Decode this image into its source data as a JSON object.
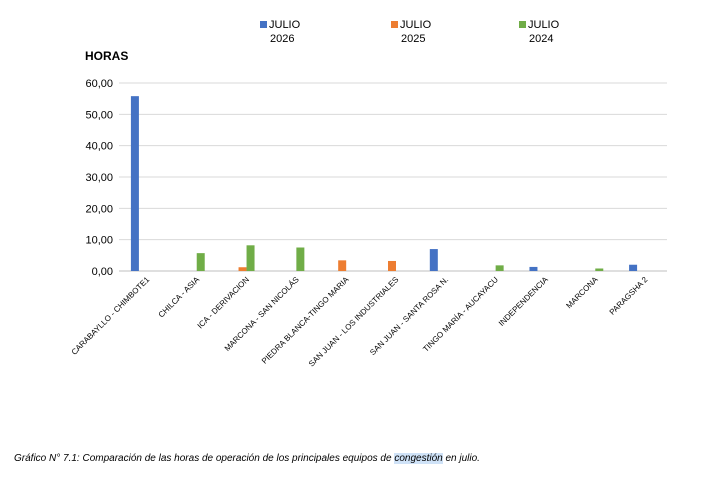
{
  "chart_data": {
    "type": "bar",
    "ylabel": "HORAS",
    "ylim": [
      0,
      60
    ],
    "yticks": [
      "0,00",
      "10,00",
      "20,00",
      "30,00",
      "40,00",
      "50,00",
      "60,00"
    ],
    "grid": true,
    "legend_position": "top",
    "categories": [
      "CARABAYLLO - CHIMBOTE1",
      "CHILCA - ASIA",
      "ICA - DERIVACION",
      "MARCONA - SAN NICOLÁS",
      "PIEDRA BLANCA-TINGO MARIA",
      "SAN JUAN - LOS INDUSTRIALES",
      "SAN JUAN - SANTA ROSA N.",
      "TINGO MARÍA - AUCAYACU",
      "INDEPENDENCIA",
      "MARCONA",
      "PARAGSHA 2"
    ],
    "series": [
      {
        "name": "JULIO 2026",
        "label_line1": "JULIO",
        "label_line2": "2026",
        "color": "#4472C4",
        "values": [
          55.8,
          0,
          0,
          0,
          0,
          0,
          7.0,
          0,
          1.3,
          0,
          2.0
        ]
      },
      {
        "name": "JULIO 2025",
        "label_line1": "JULIO",
        "label_line2": "2025",
        "color": "#ED7D31",
        "values": [
          0,
          0,
          1.2,
          0,
          3.4,
          3.2,
          0,
          0,
          0,
          0,
          0
        ]
      },
      {
        "name": "JULIO 2024",
        "label_line1": "JULIO",
        "label_line2": "2024",
        "color": "#70AD47",
        "values": [
          0,
          5.7,
          8.2,
          7.5,
          0,
          0,
          0,
          1.8,
          0,
          0.8,
          0
        ]
      }
    ]
  },
  "caption": {
    "prefix": "Gráfico N° 7.1: Comparación de las horas de operación de los principales equipos de ",
    "highlight": "congestión",
    "suffix": " en julio."
  }
}
